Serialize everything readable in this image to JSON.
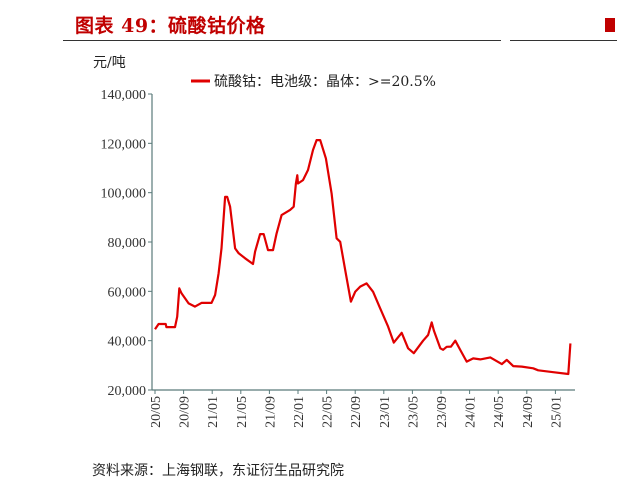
{
  "header": {
    "title": "图表 49：硫酸钴价格"
  },
  "source": "资料来源：上海钢联，东证衍生品研究院",
  "chart_data": {
    "type": "line",
    "title": "图表 49：硫酸钴价格",
    "ylabel": "元/吨",
    "xlabel": "",
    "ylim": [
      20000,
      140000
    ],
    "yticks": [
      "20,000",
      "40,000",
      "60,000",
      "80,000",
      "100,000",
      "120,000",
      "140,000"
    ],
    "ytick_values": [
      20000,
      40000,
      60000,
      80000,
      100000,
      120000,
      140000
    ],
    "xticks": [
      "20/05",
      "20/09",
      "21/01",
      "21/05",
      "21/09",
      "22/01",
      "22/05",
      "22/09",
      "23/01",
      "23/05",
      "23/09",
      "24/01",
      "24/05",
      "24/09",
      "25/01"
    ],
    "x_unit": "months since 2020-05",
    "legend_position": "top",
    "grid": false,
    "color": "#e00000",
    "series": [
      {
        "name": "硫酸钴：电池级：晶体：>=20.5%",
        "x": [
          0,
          0.5,
          1.5,
          1.6,
          2.8,
          3.1,
          3.4,
          3.7,
          4.7,
          5.6,
          6.5,
          7.9,
          8.4,
          8.9,
          9.3,
          9.8,
          10.1,
          10.5,
          11.2,
          11.7,
          12.6,
          13.7,
          14.0,
          14.7,
          15.2,
          15.8,
          16.5,
          17.0,
          17.7,
          18.9,
          19.4,
          19.7,
          19.9,
          20.0,
          20.7,
          21.4,
          22.1,
          22.6,
          23.1,
          23.9,
          24.7,
          25.4,
          25.9,
          26.6,
          27.4,
          28.0,
          28.7,
          29.6,
          30.5,
          31.5,
          32.6,
          33.4,
          34.5,
          35.4,
          36.2,
          37.5,
          38.2,
          38.7,
          39.0,
          39.9,
          40.3,
          40.8,
          41.4,
          42.0,
          42.7,
          43.6,
          44.5,
          45.5,
          46.9,
          48.5,
          49.2,
          50.1,
          51.3,
          52.9,
          53.6,
          55.7,
          57.8,
          58.1
        ],
        "values": [
          44600,
          46750,
          46750,
          45500,
          45500,
          49700,
          61200,
          59200,
          55100,
          53800,
          55300,
          55300,
          58500,
          67300,
          77400,
          98300,
          98300,
          94300,
          77400,
          75400,
          73400,
          71100,
          76100,
          83200,
          83200,
          76700,
          76700,
          83500,
          90900,
          93000,
          94300,
          103700,
          107100,
          103700,
          105100,
          109200,
          117300,
          121300,
          121300,
          113900,
          99700,
          81500,
          80100,
          68600,
          55800,
          59800,
          61900,
          63200,
          59800,
          53100,
          45700,
          39200,
          43200,
          36900,
          34900,
          40000,
          42300,
          47400,
          44100,
          36900,
          36300,
          37500,
          37600,
          40000,
          36200,
          31500,
          32800,
          32400,
          33200,
          30500,
          32200,
          29700,
          29500,
          28800,
          28000,
          27200,
          26500,
          38900
        ]
      }
    ]
  }
}
